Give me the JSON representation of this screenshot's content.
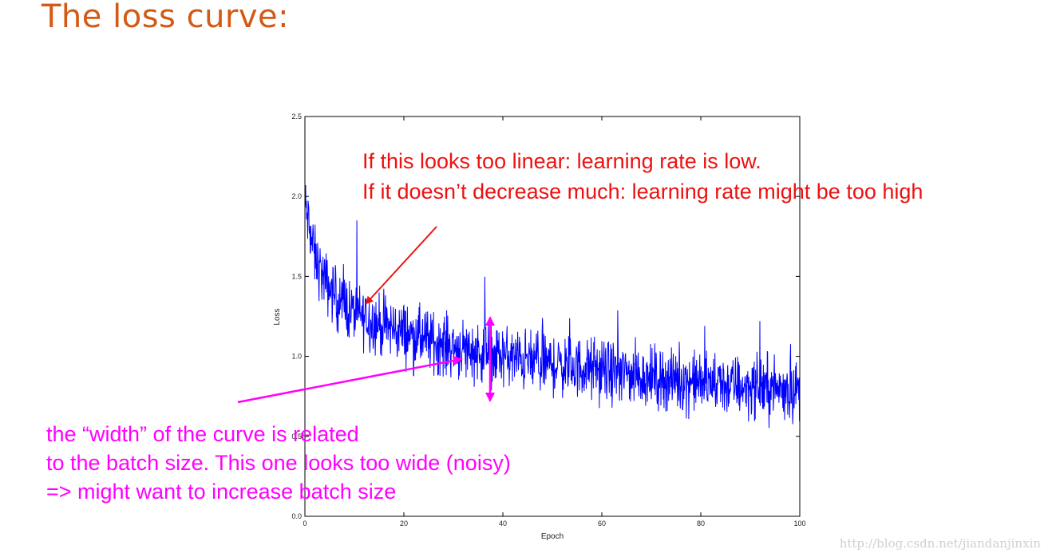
{
  "slide": {
    "title": "The loss curve:",
    "watermark": "http://blog.csdn.net/jiandanjinxin"
  },
  "annotations": {
    "red_line1": "If this looks too linear: learning rate is low.",
    "red_line2": "If it doesn’t decrease much: learning rate might be too high",
    "pink_line1": "the “width” of the curve is related",
    "pink_line2": "to the batch size. This one looks too wide (noisy)",
    "pink_line3": "=> might want to increase batch size",
    "red_color": "#ee1111",
    "pink_color": "#ff00ff"
  },
  "chart_data": {
    "type": "line",
    "xlabel": "Epoch",
    "ylabel": "Loss",
    "xlim": [
      0,
      100
    ],
    "ylim": [
      0.0,
      2.5
    ],
    "xticks": [
      0,
      20,
      40,
      60,
      80,
      100
    ],
    "yticks": [
      0.0,
      0.5,
      1.0,
      1.5,
      2.0,
      2.5
    ],
    "line_color": "#0000ff",
    "grid": false,
    "series": [
      {
        "x": [
          0,
          2,
          4,
          6,
          8,
          10,
          15,
          20,
          25,
          30,
          35,
          40,
          45,
          50,
          55,
          60,
          65,
          70,
          75,
          80,
          85,
          90,
          95,
          100
        ],
        "y": [
          1.95,
          1.62,
          1.47,
          1.38,
          1.32,
          1.27,
          1.2,
          1.15,
          1.1,
          1.06,
          1.03,
          1.0,
          0.97,
          0.95,
          0.93,
          0.91,
          0.89,
          0.87,
          0.85,
          0.84,
          0.82,
          0.81,
          0.8,
          0.79
        ],
        "noise_band": 0.28
      }
    ]
  }
}
